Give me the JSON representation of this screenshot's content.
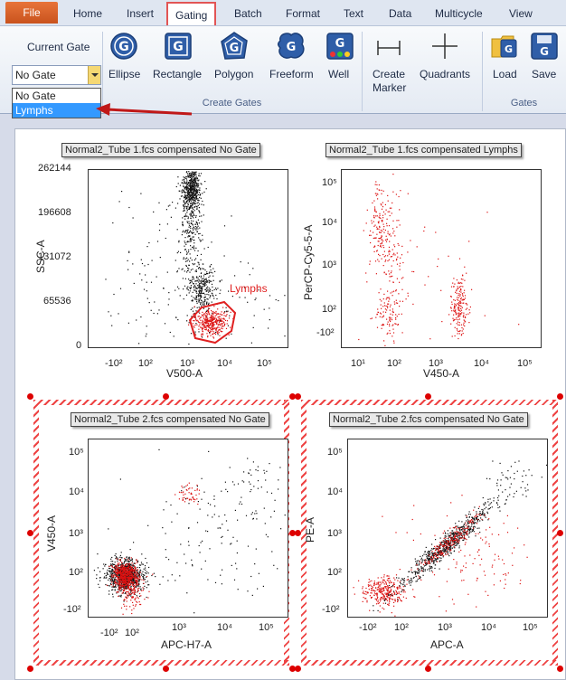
{
  "tabs": [
    "Home",
    "Insert",
    "Gating",
    "Batch",
    "Format",
    "Text",
    "Data",
    "Multicycle",
    "View"
  ],
  "file_tab": "File",
  "active_tab": "Gating",
  "ribbon": {
    "current_gate_label": "Current Gate",
    "current_gate_value": "No Gate",
    "dropdown_options": [
      "No Gate",
      "Lymphs"
    ],
    "dropdown_selected": "Lymphs",
    "create_gates": {
      "group_label": "Create Gates",
      "buttons": [
        "Ellipse",
        "Rectangle",
        "Polygon",
        "Freeform",
        "Well"
      ]
    },
    "create_marker_label_1": "Create",
    "create_marker_label_2": "Marker",
    "quadrants_label": "Quadrants",
    "gates_group": {
      "group_label": "Gates",
      "buttons": [
        "Load",
        "Save"
      ]
    }
  },
  "plots": [
    {
      "title": "Normal2_Tube 1.fcs compensated No Gate",
      "xlabel": "V500-A",
      "ylabel": "SSC-A",
      "xticks": [
        "-10²",
        "10²",
        "10³",
        "10⁴",
        "10⁵"
      ],
      "yticks": [
        "262144",
        "196608",
        "131072",
        "65536",
        "0"
      ],
      "gate_label": "Lymphs"
    },
    {
      "title": "Normal2_Tube 1.fcs compensated Lymphs",
      "xlabel": "V450-A",
      "ylabel": "PerCP-Cy5-5-A",
      "xticks": [
        "10¹",
        "10²",
        "10³",
        "10⁴",
        "10⁵"
      ],
      "yticks": [
        "10⁵",
        "10⁴",
        "10³",
        "10²",
        "-10²"
      ]
    },
    {
      "title": "Normal2_Tube 2.fcs compensated No Gate",
      "xlabel": "APC-H7-A",
      "ylabel": "V450-A",
      "xticks": [
        "-10²",
        "10²",
        "10³",
        "10⁴",
        "10⁵"
      ],
      "yticks": [
        "10⁵",
        "10⁴",
        "10³",
        "10²",
        "-10²"
      ]
    },
    {
      "title": "Normal2_Tube 2.fcs compensated No Gate",
      "xlabel": "APC-A",
      "ylabel": "PE-A",
      "xticks": [
        "-10²",
        "10²",
        "10³",
        "10⁴",
        "10⁵"
      ],
      "yticks": [
        "10⁵",
        "10⁴",
        "10³",
        "10²",
        "-10²"
      ]
    }
  ],
  "colors": {
    "accent_red": "#e02020",
    "dot_black": "#111111",
    "dot_red": "#dd1111",
    "file_tab": "#d9622b"
  }
}
